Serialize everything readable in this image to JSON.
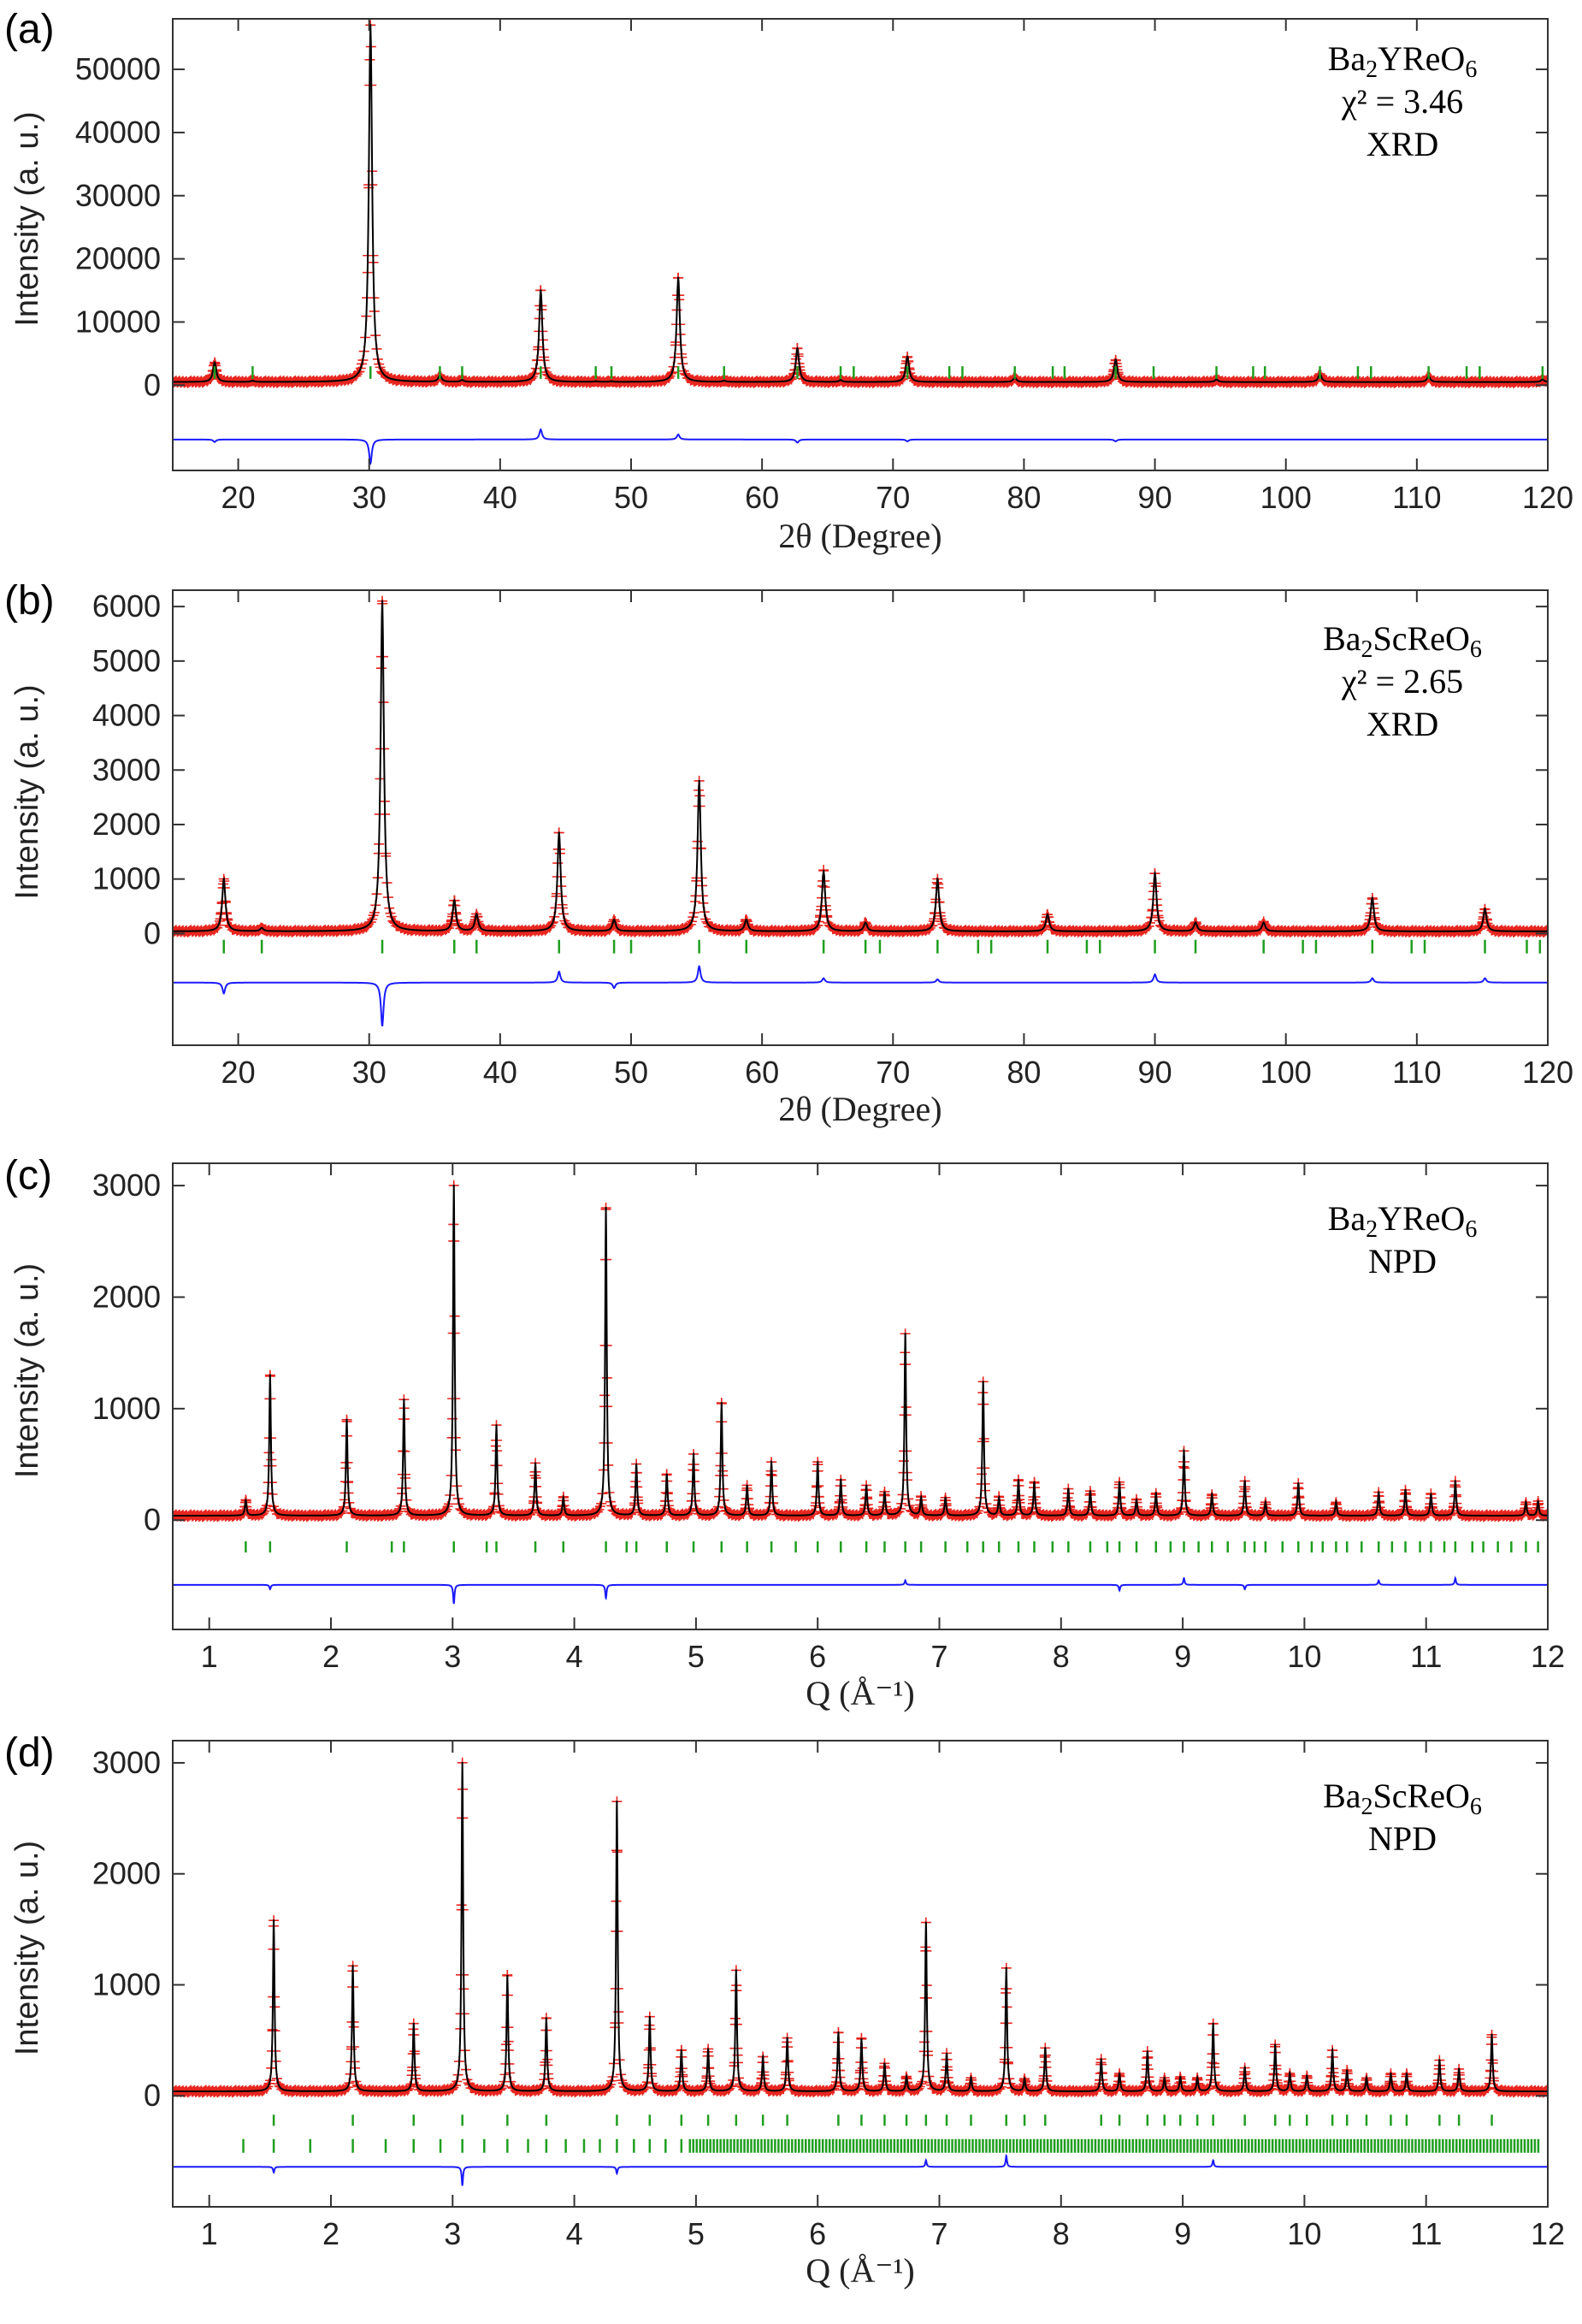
{
  "chart_data": [
    {
      "panel": "(a)",
      "type": "line",
      "compound": "Ba2YReO6",
      "compound_parts": [
        "Ba",
        "2",
        "YReO",
        "6"
      ],
      "chi_label": "χ² = 3.46",
      "method": "XRD",
      "title": "",
      "xlabel": "2θ (Degree)",
      "ylabel": "Intensity (a. u.)",
      "xlim": [
        15,
        120
      ],
      "ylim": [
        -13500,
        58000
      ],
      "xticks": [
        20,
        30,
        40,
        50,
        60,
        70,
        80,
        90,
        100,
        110,
        120
      ],
      "yticks": [
        0,
        10000,
        20000,
        30000,
        40000,
        50000
      ],
      "background": 500,
      "diff_offset": -8600,
      "tick_row": 2000,
      "tick_len": 2000,
      "peak_width": 0.15,
      "series": [
        {
          "name": "observed",
          "style": "red-plus"
        },
        {
          "name": "calculated",
          "style": "black-line"
        },
        {
          "name": "difference",
          "style": "blue-line"
        },
        {
          "name": "Bragg positions",
          "style": "green-ticks"
        }
      ],
      "peaks": {
        "x": [
          18.2,
          21.1,
          30.1,
          35.4,
          37.1,
          43.1,
          47.3,
          48.5,
          53.6,
          57.1,
          62.7,
          66.0,
          71.1,
          79.3,
          87.0,
          94.7,
          102.6,
          110.9,
          119.6
        ],
        "y": [
          3600,
          700,
          57000,
          1500,
          800,
          15000,
          600,
          600,
          17000,
          700,
          5800,
          800,
          4500,
          1200,
          4000,
          900,
          1800,
          1400,
          900
        ]
      },
      "bragg": [
        18.2,
        21.1,
        30.1,
        35.4,
        37.1,
        43.1,
        47.3,
        48.5,
        53.6,
        57.1,
        62.7,
        66.0,
        67.0,
        71.1,
        74.3,
        75.3,
        79.3,
        82.2,
        83.1,
        87.0,
        89.9,
        94.7,
        97.5,
        98.4,
        102.6,
        105.5,
        106.5,
        110.9,
        113.8,
        114.8,
        119.6
      ],
      "diff": {
        "x": [
          18.2,
          30.1,
          43.1,
          53.6,
          62.7,
          71.1,
          87.0
        ],
        "y": [
          -400,
          -3800,
          1600,
          800,
          -500,
          -300,
          -300
        ]
      }
    },
    {
      "panel": "(b)",
      "type": "line",
      "compound": "Ba2ScReO6",
      "compound_parts": [
        "Ba",
        "2",
        "ScReO",
        "6"
      ],
      "chi_label": "χ² = 2.65",
      "method": "XRD",
      "title": "",
      "xlabel": "2θ (Degree)",
      "ylabel": "Intensity (a. u.)",
      "xlim": [
        15,
        120
      ],
      "ylim": [
        -2050,
        6300
      ],
      "xticks": [
        20,
        30,
        40,
        50,
        60,
        70,
        80,
        90,
        100,
        110,
        120
      ],
      "yticks": [
        0,
        1000,
        2000,
        3000,
        4000,
        5000,
        6000
      ],
      "background": 40,
      "diff_offset": -900,
      "tick_row": -240,
      "tick_len": 250,
      "peak_width": 0.15,
      "series": [
        {
          "name": "observed",
          "style": "red-plus"
        },
        {
          "name": "calculated",
          "style": "black-line"
        },
        {
          "name": "difference",
          "style": "blue-line"
        },
        {
          "name": "Bragg positions",
          "style": "green-ticks"
        }
      ],
      "peaks": {
        "x": [
          18.9,
          21.8,
          31.0,
          36.5,
          38.2,
          44.5,
          48.7,
          55.2,
          58.8,
          64.7,
          67.9,
          73.4,
          81.8,
          90.0,
          93.1,
          98.3,
          106.6,
          115.2
        ],
        "y": [
          1000,
          100,
          6100,
          600,
          350,
          1850,
          250,
          2800,
          250,
          1150,
          200,
          1000,
          350,
          1100,
          200,
          200,
          650,
          450
        ]
      },
      "bragg": [
        18.9,
        21.8,
        31.0,
        36.5,
        38.2,
        44.5,
        48.7,
        50.0,
        55.2,
        58.8,
        64.7,
        67.9,
        69.0,
        73.4,
        76.5,
        77.5,
        81.8,
        84.8,
        85.8,
        90.0,
        93.1,
        98.3,
        101.3,
        102.3,
        106.6,
        109.6,
        110.6,
        115.2,
        118.4,
        119.4
      ],
      "diff": {
        "x": [
          18.9,
          31.0,
          44.5,
          48.7,
          55.2,
          64.7,
          73.4,
          90.0,
          106.6,
          115.2
        ],
        "y": [
          -200,
          -800,
          200,
          -100,
          300,
          80,
          60,
          150,
          80,
          80
        ]
      }
    },
    {
      "panel": "(c)",
      "type": "line",
      "compound": "Ba2YReO6",
      "compound_parts": [
        "Ba",
        "2",
        "YReO",
        "6"
      ],
      "chi_label": "",
      "method": "NPD",
      "title": "",
      "xlabel": "Q (Å⁻¹)",
      "ylabel": "Intensity (a. u.)",
      "xlim": [
        0.7,
        12
      ],
      "ylim": [
        -980,
        3200
      ],
      "xticks": [
        1,
        2,
        3,
        4,
        5,
        6,
        7,
        8,
        9,
        10,
        11,
        12
      ],
      "yticks": [
        0,
        1000,
        2000,
        3000
      ],
      "background": 40,
      "diff_offset": -580,
      "tick_row": -240,
      "tick_len": 100,
      "peak_width": 0.008,
      "series": [
        {
          "name": "observed",
          "style": "red-plus"
        },
        {
          "name": "calculated",
          "style": "black-line"
        },
        {
          "name": "difference",
          "style": "blue-line"
        },
        {
          "name": "Bragg positions",
          "style": "green-ticks"
        }
      ],
      "peaks": {
        "x": [
          1.3,
          1.5,
          2.13,
          2.6,
          3.01,
          3.36,
          3.68,
          3.91,
          4.26,
          4.51,
          4.76,
          4.98,
          5.21,
          5.42,
          5.62,
          6.0,
          6.19,
          6.4,
          6.55,
          6.72,
          6.85,
          7.05,
          7.36,
          7.49,
          7.65,
          7.78,
          8.06,
          8.24,
          8.48,
          8.62,
          8.78,
          9.01,
          9.24,
          9.51,
          9.68,
          9.95,
          10.26,
          10.61,
          10.83,
          11.04,
          11.24,
          11.82,
          11.92
        ],
        "y": [
          180,
          1300,
          900,
          1080,
          3000,
          850,
          510,
          200,
          2800,
          500,
          410,
          590,
          1050,
          310,
          520,
          520,
          360,
          310,
          250,
          1670,
          200,
          200,
          1240,
          200,
          360,
          340,
          280,
          260,
          340,
          180,
          240,
          620,
          230,
          350,
          160,
          330,
          160,
          250,
          270,
          230,
          350,
          160,
          170
        ]
      },
      "bragg": [
        1.3,
        1.5,
        2.13,
        2.5,
        2.6,
        3.01,
        3.28,
        3.36,
        3.68,
        3.91,
        4.26,
        4.43,
        4.51,
        4.76,
        4.98,
        5.21,
        5.42,
        5.62,
        5.82,
        6.0,
        6.19,
        6.4,
        6.55,
        6.72,
        6.85,
        7.05,
        7.23,
        7.36,
        7.49,
        7.65,
        7.78,
        7.93,
        8.06,
        8.24,
        8.38,
        8.48,
        8.62,
        8.78,
        8.9,
        9.01,
        9.13,
        9.24,
        9.37,
        9.51,
        9.59,
        9.68,
        9.82,
        9.95,
        10.06,
        10.15,
        10.26,
        10.35,
        10.47,
        10.61,
        10.72,
        10.83,
        10.95,
        11.04,
        11.15,
        11.24,
        11.38,
        11.47,
        11.59,
        11.7,
        11.82,
        11.92
      ],
      "diff": {
        "x": [
          1.5,
          3.01,
          4.26,
          6.72,
          8.48,
          9.01,
          9.51,
          10.61,
          11.24
        ],
        "y": [
          -40,
          -170,
          -120,
          40,
          -50,
          60,
          -40,
          40,
          60
        ]
      }
    },
    {
      "panel": "(d)",
      "type": "line",
      "compound": "Ba2ScReO6",
      "compound_parts": [
        "Ba",
        "2",
        "ScReO",
        "6"
      ],
      "chi_label": "",
      "method": "NPD",
      "title": "",
      "xlabel": "Q (Å⁻¹)",
      "ylabel": "Intensity (a. u.)",
      "xlim": [
        0.7,
        12
      ],
      "ylim": [
        -1000,
        3200
      ],
      "xticks": [
        1,
        2,
        3,
        4,
        5,
        6,
        7,
        8,
        9,
        10,
        11,
        12
      ],
      "yticks": [
        0,
        1000,
        2000,
        3000
      ],
      "background": 40,
      "diff_offset": -640,
      "tick_row": -220,
      "tick_len": 100,
      "peak_width": 0.008,
      "series": [
        {
          "name": "observed",
          "style": "red-plus"
        },
        {
          "name": "calculated",
          "style": "black-line"
        },
        {
          "name": "difference",
          "style": "blue-line"
        },
        {
          "name": "Bragg positions",
          "style": "green-ticks"
        }
      ],
      "peaks": {
        "x": [
          1.53,
          2.18,
          2.68,
          3.08,
          3.45,
          3.77,
          4.35,
          4.62,
          4.88,
          5.1,
          5.33,
          5.55,
          5.75,
          6.17,
          6.36,
          6.55,
          6.73,
          6.89,
          7.06,
          7.26,
          7.55,
          7.7,
          7.87,
          8.33,
          8.48,
          8.71,
          8.85,
          8.98,
          9.12,
          9.25,
          9.51,
          9.76,
          9.88,
          10.02,
          10.23,
          10.35,
          10.51,
          10.71,
          10.84,
          11.11,
          11.27,
          11.54
        ],
        "y": [
          1580,
          1170,
          650,
          3000,
          1080,
          700,
          2650,
          710,
          410,
          420,
          1130,
          350,
          520,
          570,
          510,
          290,
          170,
          1560,
          380,
          160,
          1150,
          150,
          430,
          330,
          200,
          400,
          160,
          170,
          160,
          650,
          250,
          460,
          200,
          180,
          410,
          230,
          160,
          200,
          200,
          320,
          240,
          550
        ]
      },
      "bragg": [
        1.53,
        2.18,
        2.68,
        3.08,
        3.45,
        3.77,
        4.35,
        4.62,
        4.88,
        5.1,
        5.33,
        5.55,
        5.75,
        6.17,
        6.36,
        6.55,
        6.73,
        6.89,
        7.06,
        7.26,
        7.55,
        7.7,
        7.87,
        8.33,
        8.48,
        8.71,
        8.85,
        8.98,
        9.12,
        9.25,
        9.51,
        9.76,
        9.88,
        10.02,
        10.23,
        10.35,
        10.51,
        10.71,
        10.84,
        11.11,
        11.27,
        11.54
      ],
      "bragg2_dense_from": 4.95,
      "bragg2_sparse": [
        1.28,
        1.53,
        1.83,
        2.18,
        2.45,
        2.68,
        2.9,
        3.08,
        3.26,
        3.45,
        3.62,
        3.77,
        3.93,
        4.08,
        4.21,
        4.35,
        4.49,
        4.62,
        4.75,
        4.88
      ],
      "diff": {
        "x": [
          1.53,
          3.08,
          4.35,
          6.89,
          7.55,
          9.25
        ],
        "y": [
          -50,
          -170,
          -60,
          60,
          100,
          60
        ]
      }
    }
  ]
}
